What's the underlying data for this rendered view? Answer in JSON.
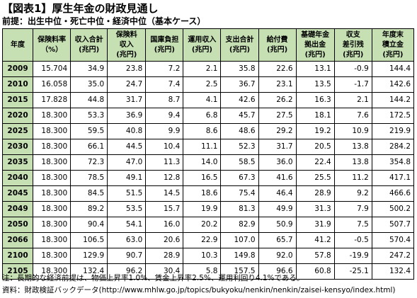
{
  "title": "【図表1】厚生年金の財政見通し",
  "subtitle": "前提：出生中位・死亡中位・経済中位（基本ケース）",
  "table": {
    "headers": [
      [
        "年度"
      ],
      [
        "保険料率",
        "（%）"
      ],
      [
        "収入合計",
        "(兆円)"
      ],
      [
        "保険料",
        "収入",
        "(兆円)"
      ],
      [
        "国庫負担",
        "(兆円)"
      ],
      [
        "運用収入",
        "(兆円)"
      ],
      [
        "支出合計",
        "(兆円)"
      ],
      [
        "給付費",
        "(兆円)"
      ],
      [
        "基礎年金",
        "拠出金",
        "(兆円)"
      ],
      [
        "収支",
        "差引残",
        "(兆円)"
      ],
      [
        "年度末",
        "積立金",
        "(兆円)"
      ]
    ],
    "rows": [
      [
        "2009",
        "15.704",
        "34.9",
        "23.8",
        "7.2",
        "2.1",
        "35.8",
        "22.6",
        "13.1",
        "-0.9",
        "144.4"
      ],
      [
        "2010",
        "16.058",
        "35.0",
        "24.7",
        "7.4",
        "2.5",
        "36.7",
        "23.1",
        "13.5",
        "-1.7",
        "142.6"
      ],
      [
        "2015",
        "17.828",
        "44.8",
        "31.7",
        "8.7",
        "4.1",
        "42.6",
        "26.2",
        "16.3",
        "2.1",
        "144.2"
      ],
      [
        "2020",
        "18.300",
        "53.3",
        "36.9",
        "9.4",
        "6.8",
        "45.7",
        "27.5",
        "18.1",
        "7.6",
        "172.5"
      ],
      [
        "2025",
        "18.300",
        "59.5",
        "40.8",
        "9.9",
        "8.6",
        "48.6",
        "29.2",
        "19.2",
        "10.9",
        "219.9"
      ],
      [
        "2030",
        "18.300",
        "66.1",
        "44.5",
        "10.4",
        "11.1",
        "52.3",
        "31.7",
        "20.5",
        "13.8",
        "284.2"
      ],
      [
        "2035",
        "18.300",
        "72.3",
        "47.0",
        "11.3",
        "14.0",
        "58.5",
        "36.0",
        "22.4",
        "13.8",
        "354.8"
      ],
      [
        "2040",
        "18.300",
        "78.5",
        "49.1",
        "12.8",
        "16.5",
        "67.3",
        "41.6",
        "25.5",
        "11.2",
        "417.1"
      ],
      [
        "2045",
        "18.300",
        "84.5",
        "51.5",
        "14.5",
        "18.6",
        "75.4",
        "46.4",
        "28.9",
        "9.2",
        "466.6"
      ],
      [
        "2049",
        "18.300",
        "89.2",
        "53.5",
        "15.7",
        "19.9",
        "81.3",
        "49.9",
        "31.3",
        "7.9",
        "500.2"
      ],
      [
        "2050",
        "18.300",
        "90.4",
        "54.1",
        "16.0",
        "20.2",
        "82.9",
        "50.9",
        "31.9",
        "7.5",
        "507.7"
      ],
      [
        "2066",
        "18.300",
        "106.5",
        "63.0",
        "20.6",
        "22.9",
        "107.0",
        "65.7",
        "41.2",
        "-0.5",
        "570.4"
      ],
      [
        "2100",
        "18.300",
        "129.9",
        "90.7",
        "28.9",
        "10.3",
        "149.8",
        "92.0",
        "57.8",
        "-19.9",
        "247.2"
      ],
      [
        "2105",
        "18.300",
        "132.4",
        "96.2",
        "30.4",
        "5.8",
        "157.5",
        "96.6",
        "60.8",
        "-25.1",
        "132.4"
      ]
    ]
  },
  "notes": {
    "note1": "注：長期的な経済前提は、物価上昇率1.0%、賃金上昇率2.5%、運用利回り4.1%である。",
    "note2": "資料：財政検証バックデータ(http://www.mhlw.go.jp/topics/bukyoku/nenkin/nenkin/zaisei-kensyo/index.html)"
  },
  "colors": {
    "header_bg": "#c6e0b4",
    "border": "#000000",
    "text": "#000000"
  }
}
